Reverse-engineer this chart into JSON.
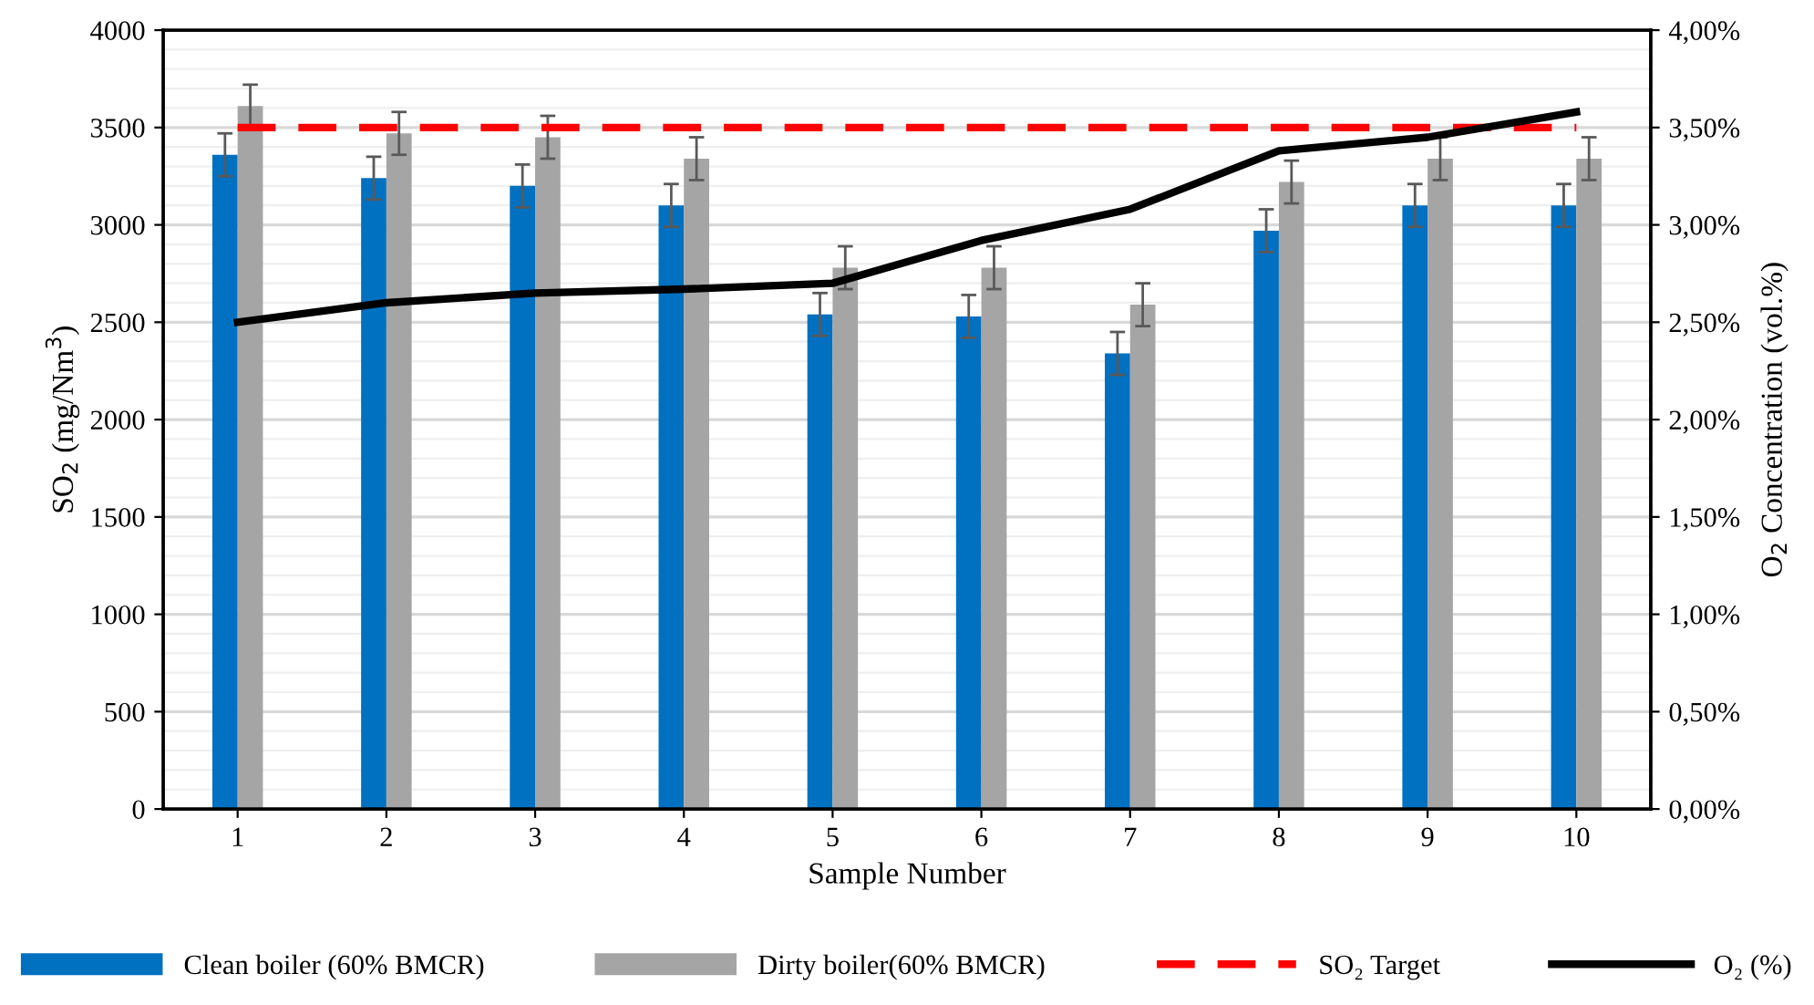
{
  "chart_data": {
    "type": "bar",
    "xlabel": "Sample Number",
    "ylabel": "SO$_{2}$ (mg/Nm$^{3}$)",
    "y2label": "O$_{2}$ Concentration (vol.%)",
    "categories": [
      "1",
      "2",
      "3",
      "4",
      "5",
      "6",
      "7",
      "8",
      "9",
      "10"
    ],
    "series": [
      {
        "name": "Clean boiler (60% BMCR)",
        "color": "#0070c0",
        "values": [
          3360,
          3240,
          3200,
          3100,
          2540,
          2530,
          2340,
          2970,
          3100,
          3100
        ],
        "errors": [
          110,
          110,
          110,
          110,
          110,
          110,
          110,
          110,
          110,
          110
        ]
      },
      {
        "name": "Dirty boiler(60% BMCR)",
        "color": "#a5a5a5",
        "values": [
          3610,
          3470,
          3450,
          3340,
          2780,
          2780,
          2590,
          3220,
          3340,
          3340
        ],
        "errors": [
          110,
          110,
          110,
          110,
          110,
          110,
          110,
          110,
          110,
          110
        ]
      },
      {
        "name": "O₂ (%)",
        "type": "line",
        "axis": "y2",
        "color": "#000000",
        "values": [
          2.5,
          2.6,
          2.65,
          2.67,
          2.7,
          2.92,
          3.08,
          3.38,
          3.45,
          3.58
        ]
      }
    ],
    "ref_lines": [
      {
        "axis": "y",
        "value": 3500,
        "label": "SO₂ Target",
        "color": "#ff0000",
        "line_style": "dashed"
      }
    ],
    "ylim": [
      0,
      4000
    ],
    "yticks": [
      0,
      500,
      1000,
      1500,
      2000,
      2500,
      3000,
      3500,
      4000
    ],
    "y2lim": [
      0,
      4
    ],
    "y2ticks": [
      {
        "value": 0,
        "label": "0,00%"
      },
      {
        "value": 0.5,
        "label": "0,50%"
      },
      {
        "value": 1,
        "label": "1,00%"
      },
      {
        "value": 1.5,
        "label": "1,50%"
      },
      {
        "value": 2,
        "label": "2,00%"
      },
      {
        "value": 2.5,
        "label": "2,50%"
      },
      {
        "value": 3,
        "label": "3,00%"
      },
      {
        "value": 3.5,
        "label": "3,50%"
      },
      {
        "value": 4,
        "label": "4,00%"
      }
    ],
    "grid": "y",
    "legend": "bottom",
    "marker": "none",
    "line_style": "solid"
  }
}
